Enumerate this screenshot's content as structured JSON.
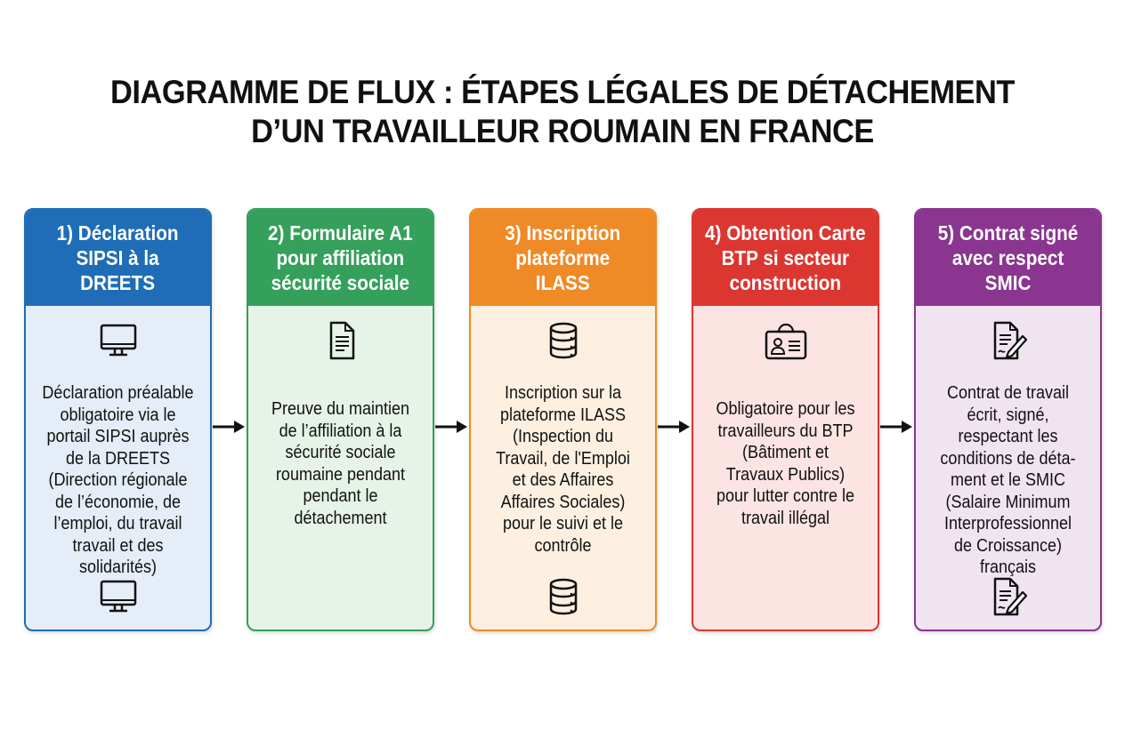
{
  "title": [
    "DIAGRAMME DE FLUX : ÉTAPES LÉGALES DE DÉTACHEMENT",
    "D’UN TRAVAILLEUR ROUMAIN EN FRANCE"
  ],
  "steps": [
    {
      "heading": [
        "1) Déclaration",
        "SIPSI à la",
        "DREETS"
      ],
      "color": "#1f6db6",
      "bg": "#e5eef8",
      "icon": "monitor-icon",
      "bottom_icon": true,
      "description": [
        "Déclaration préalable",
        "obligatoire via le",
        "portail SIPSI auprès",
        "de la DREETS",
        "(Direction régionale",
        "de l’économie, de",
        "l’emploi, du travail",
        "travail et des",
        "solidarités)"
      ]
    },
    {
      "heading": [
        "2) Formulaire A1",
        "pour affiliation",
        "sécurité sociale"
      ],
      "color": "#35a05b",
      "bg": "#e6f4e8",
      "icon": "document-icon",
      "bottom_icon": false,
      "description": [
        "Preuve du maintien",
        "de l’affiliation à la",
        "sécurité sociale",
        "roumaine pendant",
        "pendant le",
        "détachement"
      ]
    },
    {
      "heading": [
        "3) Inscription",
        "plateforme",
        "ILASS"
      ],
      "color": "#ef8a26",
      "bg": "#fdf0e1",
      "icon": "database-icon",
      "bottom_icon": true,
      "description": [
        "Inscription sur la",
        "plateforme ILASS",
        "(Inspection du",
        "Travail, de l'Emploi",
        "et des Affaires",
        "Affaires Sociales)",
        "pour le suivi et le",
        "contrôle"
      ]
    },
    {
      "heading": [
        "4) Obtention Carte",
        "BTP si secteur",
        "construction"
      ],
      "color": "#dc3631",
      "bg": "#fbe4e2",
      "icon": "id-card-hardhat-icon",
      "bottom_icon": false,
      "description": [
        "Obligatoire pour les",
        "travailleurs du BTP",
        "(Bâtiment et",
        "Travaux Publics)",
        "pour lutter contre le",
        "travail illégal"
      ]
    },
    {
      "heading": [
        "5) Contrat signé",
        "avec respect",
        "SMIC"
      ],
      "color": "#8a3590",
      "bg": "#f1e4f1",
      "icon": "contract-pen-icon",
      "bottom_icon": true,
      "description": [
        "Contrat de travail",
        "écrit, signé,",
        "respectant les",
        "conditions de déta-",
        "ment et le SMIC",
        "(Salaire Minimum",
        "Interprofessionnel",
        "de Croissance)",
        "français"
      ]
    }
  ],
  "arrow_color": "#111111"
}
